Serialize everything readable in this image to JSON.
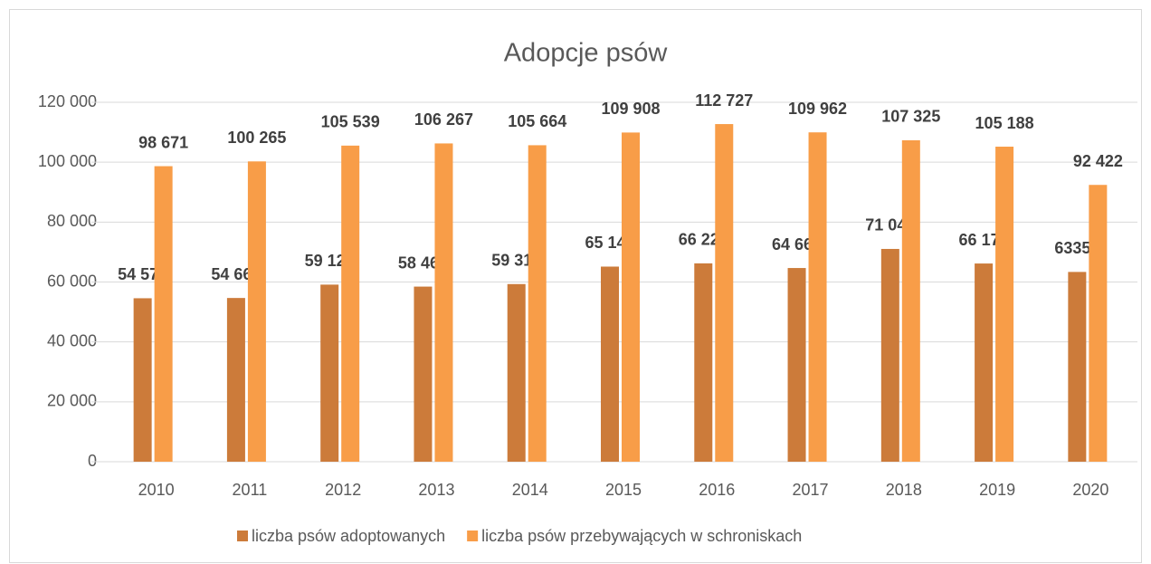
{
  "chart_data": {
    "type": "bar",
    "title": "Adopcje psów",
    "categories": [
      "2010",
      "2011",
      "2012",
      "2013",
      "2014",
      "2015",
      "2016",
      "2017",
      "2018",
      "2019",
      "2020"
    ],
    "series": [
      {
        "name": "liczba psów adoptowanych",
        "color": "#cc7b3a",
        "values": [
          54574,
          54665,
          59124,
          58464,
          59310,
          65142,
          66223,
          64669,
          71042,
          66176,
          63358
        ],
        "value_labels": [
          "54 574",
          "54 665",
          "59 124",
          "58 464",
          "59 310",
          "65 142",
          "66 223",
          "64 669",
          "71 042",
          "66 176",
          "63358"
        ]
      },
      {
        "name": "liczba psów przebywających w schroniskach",
        "color": "#f89d48",
        "values": [
          98671,
          100265,
          105539,
          106267,
          105664,
          109908,
          112727,
          109962,
          107325,
          105188,
          92422
        ],
        "value_labels": [
          "98 671",
          "100 265",
          "105 539",
          "106 267",
          "105 664",
          "109 908",
          "112 727",
          "109 962",
          "107 325",
          "105 188",
          "92 422"
        ]
      }
    ],
    "ylim": [
      0,
      120000
    ],
    "yticks": [
      0,
      {
        "value": 20000,
        "label": "20 000"
      },
      {
        "value": 40000,
        "label": "40 000"
      },
      {
        "value": 60000,
        "label": "60 000"
      },
      {
        "value": 80000,
        "label": "80 000"
      },
      {
        "value": 100000,
        "label": "100 000"
      },
      {
        "value": 120000,
        "label": "120 000"
      }
    ],
    "grid": true,
    "legend": "bottom"
  }
}
